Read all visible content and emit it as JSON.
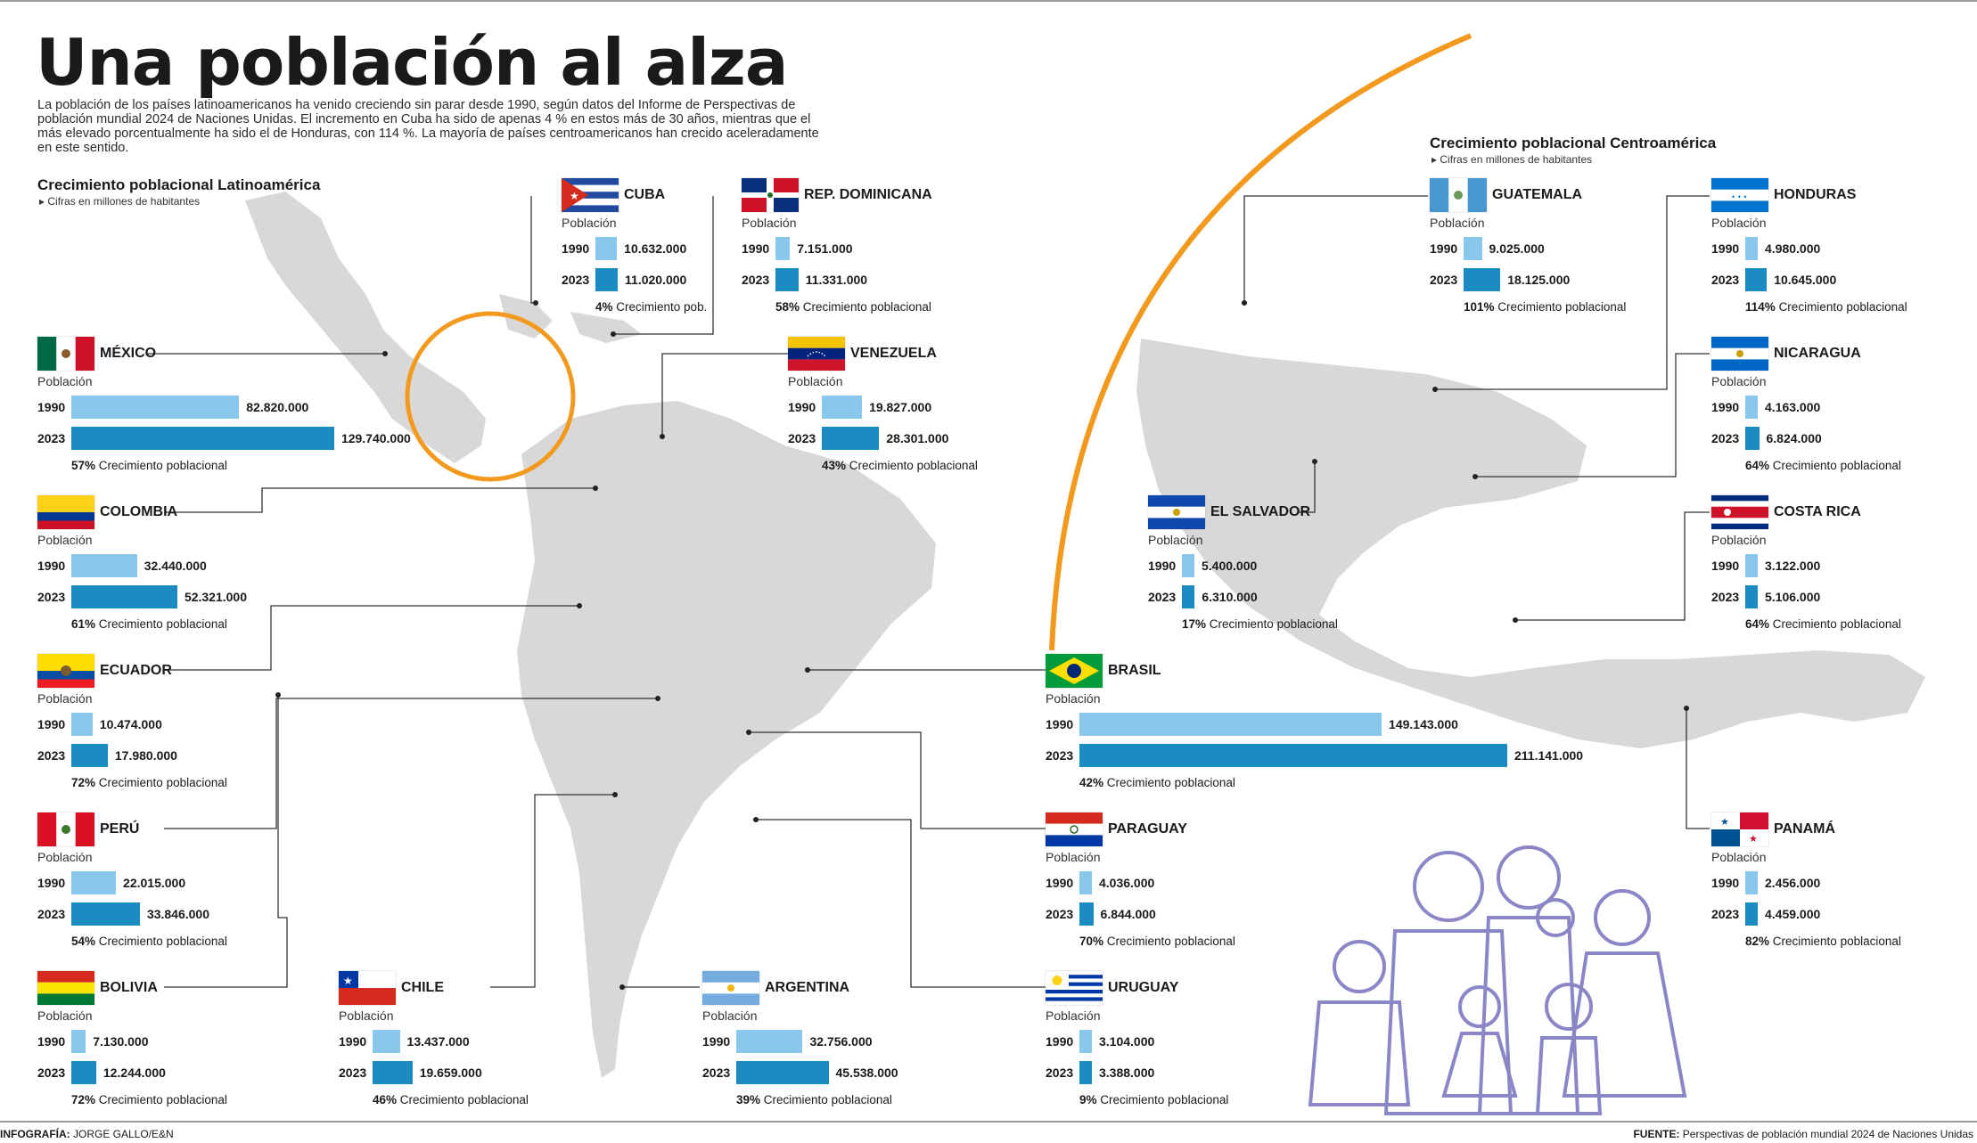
{
  "title": "Una población al alza",
  "intro": "La población de los países latinoamericanos ha venido creciendo sin parar desde 1990, según datos del Informe de Perspectivas de población mundial 2024 de Naciones Unidas. El incremento en Cuba ha sido de apenas 4 % en estos más de 30 años, mientras que el más elevado porcentualmente ha sido el de Honduras, con 114 %. La mayoría de países centroamericanos han crecido aceleradamente en este sentido.",
  "section_latam": {
    "title": "Crecimiento poblacional Latinoamérica",
    "subtitle": "▸ Cifras en millones de habitantes"
  },
  "section_central": {
    "title": "Crecimiento poblacional Centroamérica",
    "subtitle": "▸ Cifras en millones de habitantes"
  },
  "population_label": "Población",
  "growth_suffix_default": "Crecimiento poblacional",
  "colors": {
    "bar_1990": "#89c8ec",
    "bar_2023": "#1a8cc1",
    "map": "#d8d8d8",
    "arc": "#f39a1e",
    "family": "#8b86c6"
  },
  "footer": {
    "credit_label": "INFOGRAFÍA:",
    "credit": "JORGE GALLO/E&N",
    "source_label": "FUENTE:",
    "source": "Perspectivas de población mundial 2024 de Naciones Unidas"
  },
  "chart_data": {
    "type": "bar",
    "title": "Crecimiento poblacional",
    "years": [
      "1990",
      "2023"
    ],
    "countries": [
      {
        "name": "CUBA",
        "flag": "cuba-flag",
        "v1990": "10.632.000",
        "v2023": "11.020.000",
        "n1990": 10632000,
        "n2023": 11020000,
        "growth": "4%",
        "growth_label": "Crecimiento pob."
      },
      {
        "name": "REP. DOMINICANA",
        "flag": "dominican-flag",
        "v1990": "7.151.000",
        "v2023": "11.331.000",
        "n1990": 7151000,
        "n2023": 11331000,
        "growth": "58%",
        "growth_label": "Crecimiento poblacional"
      },
      {
        "name": "MÉXICO",
        "flag": "mexico-flag",
        "v1990": "82.820.000",
        "v2023": "129.740.000",
        "n1990": 82820000,
        "n2023": 129740000,
        "growth": "57%",
        "growth_label": "Crecimiento poblacional"
      },
      {
        "name": "VENEZUELA",
        "flag": "venezuela-flag",
        "v1990": "19.827.000",
        "v2023": "28.301.000",
        "n1990": 19827000,
        "n2023": 28301000,
        "growth": "43%",
        "growth_label": "Crecimiento poblacional"
      },
      {
        "name": "COLOMBIA",
        "flag": "colombia-flag",
        "v1990": "32.440.000",
        "v2023": "52.321.000",
        "n1990": 32440000,
        "n2023": 52321000,
        "growth": "61%",
        "growth_label": "Crecimiento poblacional"
      },
      {
        "name": "ECUADOR",
        "flag": "ecuador-flag",
        "v1990": "10.474.000",
        "v2023": "17.980.000",
        "n1990": 10474000,
        "n2023": 17980000,
        "growth": "72%",
        "growth_label": "Crecimiento poblacional"
      },
      {
        "name": "PERÚ",
        "flag": "peru-flag",
        "v1990": "22.015.000",
        "v2023": "33.846.000",
        "n1990": 22015000,
        "n2023": 33846000,
        "growth": "54%",
        "growth_label": "Crecimiento poblacional"
      },
      {
        "name": "BOLIVIA",
        "flag": "bolivia-flag",
        "v1990": "7.130.000",
        "v2023": "12.244.000",
        "n1990": 7130000,
        "n2023": 12244000,
        "growth": "72%",
        "growth_label": "Crecimiento poblacional"
      },
      {
        "name": "CHILE",
        "flag": "chile-flag",
        "v1990": "13.437.000",
        "v2023": "19.659.000",
        "n1990": 13437000,
        "n2023": 19659000,
        "growth": "46%",
        "growth_label": "Crecimiento poblacional"
      },
      {
        "name": "ARGENTINA",
        "flag": "argentina-flag",
        "v1990": "32.756.000",
        "v2023": "45.538.000",
        "n1990": 32756000,
        "n2023": 45538000,
        "growth": "39%",
        "growth_label": "Crecimiento poblacional"
      },
      {
        "name": "BRASIL",
        "flag": "brazil-flag",
        "v1990": "149.143.000",
        "v2023": "211.141.000",
        "n1990": 149143000,
        "n2023": 211141000,
        "growth": "42%",
        "growth_label": "Crecimiento poblacional"
      },
      {
        "name": "PARAGUAY",
        "flag": "paraguay-flag",
        "v1990": "4.036.000",
        "v2023": "6.844.000",
        "n1990": 4036000,
        "n2023": 6844000,
        "growth": "70%",
        "growth_label": "Crecimiento poblacional"
      },
      {
        "name": "URUGUAY",
        "flag": "uruguay-flag",
        "v1990": "3.104.000",
        "v2023": "3.388.000",
        "n1990": 3104000,
        "n2023": 3388000,
        "growth": "9%",
        "growth_label": "Crecimiento poblacional"
      },
      {
        "name": "GUATEMALA",
        "flag": "guatemala-flag",
        "v1990": "9.025.000",
        "v2023": "18.125.000",
        "n1990": 9025000,
        "n2023": 18125000,
        "growth": "101%",
        "growth_label": "Crecimiento poblacional"
      },
      {
        "name": "HONDURAS",
        "flag": "honduras-flag",
        "v1990": "4.980.000",
        "v2023": "10.645.000",
        "n1990": 4980000,
        "n2023": 10645000,
        "growth": "114%",
        "growth_label": "Crecimiento poblacional"
      },
      {
        "name": "NICARAGUA",
        "flag": "nicaragua-flag",
        "v1990": "4.163.000",
        "v2023": "6.824.000",
        "n1990": 4163000,
        "n2023": 6824000,
        "growth": "64%",
        "growth_label": "Crecimiento poblacional"
      },
      {
        "name": "EL SALVADOR",
        "flag": "elsalvador-flag",
        "v1990": "5.400.000",
        "v2023": "6.310.000",
        "n1990": 5400000,
        "n2023": 6310000,
        "growth": "17%",
        "growth_label": "Crecimiento poblacional"
      },
      {
        "name": "COSTA RICA",
        "flag": "costarica-flag",
        "v1990": "3.122.000",
        "v2023": "5.106.000",
        "n1990": 3122000,
        "n2023": 5106000,
        "growth": "64%",
        "growth_label": "Crecimiento poblacional"
      },
      {
        "name": "PANAMÁ",
        "flag": "panama-flag",
        "v1990": "2.456.000",
        "v2023": "4.459.000",
        "n1990": 2456000,
        "n2023": 4459000,
        "growth": "82%",
        "growth_label": "Crecimiento poblacional"
      }
    ]
  }
}
